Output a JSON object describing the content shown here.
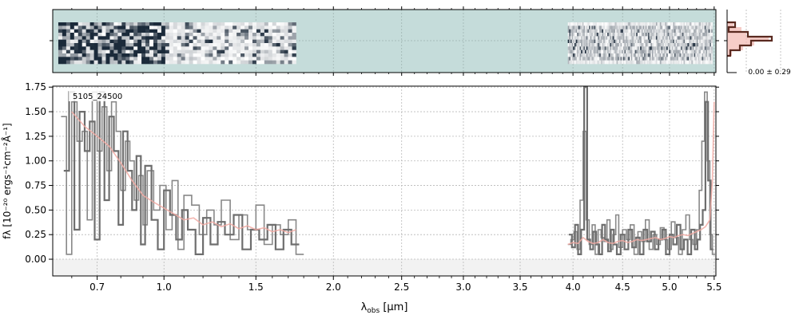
{
  "chart_data": [
    {
      "type": "heatmap",
      "panel": "2d-spectrum",
      "background_color": "#c5dcda",
      "colormap": [
        "#ffffff",
        "#1b2a3a"
      ],
      "x_scale": "power-law wavelength",
      "xlim": [
        0.53,
        5.52
      ],
      "segments": [
        {
          "wave_range": [
            0.55,
            1.75
          ],
          "rows": 12,
          "cols": 60,
          "style": "dense-noisy"
        },
        {
          "wave_range": [
            3.95,
            5.48
          ],
          "rows": 12,
          "cols": 110,
          "style": "faint-noisy"
        }
      ]
    },
    {
      "type": "line",
      "panel": "profile",
      "series": [
        {
          "color": "#f2b8b0",
          "style": "filled"
        },
        {
          "color": "#5a2a20",
          "style": "step"
        }
      ],
      "annotation": "0.00 ± 0.29"
    },
    {
      "type": "line",
      "panel": "1d-spectrum",
      "xlabel": "λobs [μm]",
      "ylabel": "fλ [10⁻²⁰ ergs⁻¹cm⁻²Å⁻¹]",
      "xlim": [
        0.53,
        5.52
      ],
      "ylim": [
        -0.17,
        1.76
      ],
      "x_scale": "power-law",
      "grid": true,
      "xticks": [
        {
          "v": 0.7,
          "label": "0.7"
        },
        {
          "v": 1.0,
          "label": "1.0"
        },
        {
          "v": 1.5,
          "label": "1.5"
        },
        {
          "v": 2.0,
          "label": "2.0"
        },
        {
          "v": 2.5,
          "label": "2.5"
        },
        {
          "v": 3.0,
          "label": "3.0"
        },
        {
          "v": 3.5,
          "label": "3.5"
        },
        {
          "v": 4.0,
          "label": "4.0"
        },
        {
          "v": 4.5,
          "label": "4.5"
        },
        {
          "v": 5.0,
          "label": "5.0"
        },
        {
          "v": 5.5,
          "label": "5.5"
        }
      ],
      "yticks": [
        {
          "v": 0.0,
          "label": "0.00"
        },
        {
          "v": 0.25,
          "label": "0.25"
        },
        {
          "v": 0.5,
          "label": "0.50"
        },
        {
          "v": 0.75,
          "label": "0.75"
        },
        {
          "v": 1.0,
          "label": "1.00"
        },
        {
          "v": 1.25,
          "label": "1.25"
        },
        {
          "v": 1.5,
          "label": "1.50"
        },
        {
          "v": 1.75,
          "label": "1.75"
        }
      ],
      "object_label": "5105_24500",
      "series": [
        {
          "style": "step",
          "color": "#888888",
          "segments": [
            {
              "x": [
                0.56,
                0.58,
                0.6,
                0.62,
                0.64,
                0.66,
                0.68,
                0.7,
                0.72,
                0.74,
                0.76,
                0.78,
                0.8,
                0.82,
                0.84,
                0.86,
                0.88,
                0.9,
                0.92,
                0.95,
                0.98,
                1.01,
                1.04,
                1.07,
                1.1,
                1.14,
                1.18,
                1.22,
                1.26,
                1.3,
                1.35,
                1.4,
                1.45,
                1.5,
                1.55,
                1.6,
                1.65,
                1.7,
                1.75
              ],
              "y": [
                1.45,
                0.05,
                1.6,
                1.2,
                1.3,
                0.4,
                1.7,
                1.1,
                1.55,
                0.9,
                1.6,
                1.3,
                0.7,
                1.2,
                1.0,
                0.6,
                0.85,
                0.35,
                0.9,
                0.5,
                0.75,
                0.3,
                0.8,
                0.1,
                0.65,
                0.55,
                0.25,
                0.5,
                0.35,
                0.6,
                0.2,
                0.45,
                0.3,
                0.55,
                0.15,
                0.35,
                0.25,
                0.4,
                0.05
              ]
            },
            {
              "x": [
                3.95,
                3.98,
                4.01,
                4.04,
                4.07,
                4.1,
                4.13,
                4.16,
                4.19,
                4.22,
                4.25,
                4.28,
                4.31,
                4.34,
                4.37,
                4.4,
                4.43,
                4.46,
                4.5,
                4.54,
                4.58,
                4.62,
                4.66,
                4.7,
                4.74,
                4.78,
                4.82,
                4.86,
                4.9,
                4.94,
                4.98,
                5.02,
                5.06,
                5.1,
                5.14,
                5.18,
                5.22,
                5.26,
                5.3,
                5.33,
                5.36,
                5.39,
                5.42,
                5.45,
                5.48
              ],
              "y": [
                0.15,
                0.2,
                0.28,
                0.1,
                0.6,
                1.3,
                0.4,
                0.15,
                0.35,
                0.05,
                0.3,
                0.22,
                0.18,
                0.4,
                0.1,
                0.25,
                0.45,
                0.12,
                0.3,
                0.2,
                0.35,
                0.05,
                0.28,
                0.18,
                0.4,
                0.1,
                0.25,
                0.15,
                0.32,
                0.2,
                0.1,
                0.38,
                0.22,
                0.05,
                0.3,
                0.45,
                0.2,
                0.15,
                0.3,
                0.7,
                1.2,
                1.7,
                1.0,
                0.25,
                0.05
              ]
            }
          ]
        },
        {
          "style": "step",
          "color": "#6e6e6e",
          "width": 2.2,
          "segments": [
            {
              "x": [
                0.57,
                0.59,
                0.61,
                0.63,
                0.65,
                0.67,
                0.69,
                0.71,
                0.73,
                0.75,
                0.77,
                0.79,
                0.81,
                0.83,
                0.85,
                0.87,
                0.89,
                0.91,
                0.94,
                0.97,
                1.0,
                1.03,
                1.06,
                1.09,
                1.12,
                1.16,
                1.2,
                1.24,
                1.28,
                1.32,
                1.37,
                1.42,
                1.47,
                1.52,
                1.57,
                1.62,
                1.67,
                1.72
              ],
              "y": [
                0.9,
                1.7,
                0.3,
                1.5,
                1.1,
                1.4,
                0.2,
                1.7,
                0.6,
                1.45,
                1.1,
                0.35,
                1.3,
                0.9,
                0.5,
                1.05,
                0.15,
                0.95,
                0.4,
                0.1,
                0.7,
                0.45,
                0.2,
                0.5,
                0.3,
                0.05,
                0.42,
                0.15,
                0.38,
                0.25,
                0.45,
                0.1,
                0.3,
                0.2,
                0.35,
                0.1,
                0.3,
                0.15
              ]
            },
            {
              "x": [
                3.96,
                3.99,
                4.02,
                4.05,
                4.08,
                4.11,
                4.14,
                4.17,
                4.2,
                4.23,
                4.26,
                4.29,
                4.32,
                4.35,
                4.38,
                4.41,
                4.44,
                4.48,
                4.52,
                4.56,
                4.6,
                4.64,
                4.68,
                4.72,
                4.76,
                4.8,
                4.84,
                4.88,
                4.92,
                4.96,
                5.0,
                5.04,
                5.08,
                5.12,
                5.16,
                5.2,
                5.24,
                5.28,
                5.31,
                5.34,
                5.37,
                5.4,
                5.43,
                5.46
              ],
              "y": [
                0.25,
                0.12,
                0.35,
                0.05,
                0.3,
                1.75,
                0.2,
                0.1,
                0.28,
                0.15,
                0.05,
                0.35,
                0.2,
                0.08,
                0.3,
                0.15,
                0.05,
                0.25,
                0.1,
                0.3,
                0.12,
                0.22,
                0.05,
                0.3,
                0.18,
                0.28,
                0.1,
                0.2,
                0.3,
                0.05,
                0.25,
                0.15,
                0.35,
                0.1,
                0.2,
                0.05,
                0.3,
                0.1,
                0.2,
                0.35,
                0.5,
                1.6,
                0.8,
                0.1
              ]
            }
          ]
        },
        {
          "style": "line",
          "color": "#f2a9a2",
          "segments": [
            {
              "x": [
                0.6,
                0.65,
                0.7,
                0.75,
                0.8,
                0.85,
                0.9,
                0.95,
                1.0,
                1.05,
                1.1,
                1.15,
                1.2,
                1.25,
                1.3,
                1.35,
                1.4,
                1.45,
                1.5,
                1.55,
                1.6,
                1.65,
                1.7,
                1.75
              ],
              "y": [
                1.5,
                1.35,
                1.25,
                1.15,
                0.98,
                0.8,
                0.65,
                0.58,
                0.52,
                0.46,
                0.4,
                0.42,
                0.35,
                0.38,
                0.33,
                0.36,
                0.31,
                0.34,
                0.3,
                0.32,
                0.28,
                0.3,
                0.27,
                0.3
              ]
            },
            {
              "x": [
                3.95,
                4.0,
                4.05,
                4.1,
                4.15,
                4.2,
                4.25,
                4.3,
                4.35,
                4.4,
                4.45,
                4.5,
                4.55,
                4.6,
                4.65,
                4.7,
                4.75,
                4.8,
                4.85,
                4.9,
                4.95,
                5.0,
                5.05,
                5.1,
                5.15,
                5.2,
                5.25,
                5.3,
                5.35,
                5.4,
                5.45,
                5.48,
                5.5
              ],
              "y": [
                0.15,
                0.17,
                0.16,
                0.22,
                0.18,
                0.16,
                0.17,
                0.2,
                0.17,
                0.16,
                0.18,
                0.19,
                0.17,
                0.18,
                0.2,
                0.19,
                0.2,
                0.21,
                0.22,
                0.2,
                0.21,
                0.23,
                0.22,
                0.24,
                0.25,
                0.24,
                0.26,
                0.28,
                0.3,
                0.33,
                0.4,
                0.8,
                1.6
              ]
            }
          ]
        }
      ]
    }
  ]
}
